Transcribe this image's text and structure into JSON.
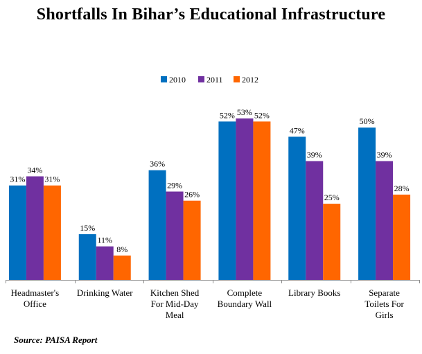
{
  "chart_data": {
    "type": "bar",
    "title": "Shortfalls In Bihar’s Educational Infrastructure",
    "categories": [
      [
        "Headmaster's",
        "Office"
      ],
      [
        "Drinking Water"
      ],
      [
        "Kitchen Shed",
        "For Mid-Day",
        "Meal"
      ],
      [
        "Complete",
        "Boundary Wall"
      ],
      [
        "Library Books"
      ],
      [
        "Separate",
        "Toilets For",
        "Girls"
      ]
    ],
    "series": [
      {
        "name": "2010",
        "color": "#0070c0",
        "values": [
          31,
          15,
          36,
          52,
          47,
          50
        ]
      },
      {
        "name": "2011",
        "color": "#7030a0",
        "values": [
          34,
          11,
          29,
          53,
          39,
          39
        ]
      },
      {
        "name": "2012",
        "color": "#ff6600",
        "values": [
          31,
          8,
          26,
          52,
          25,
          28
        ]
      }
    ],
    "value_suffix": "%",
    "legend_position": "top-center",
    "grid": false,
    "ylim": [
      0,
      53
    ],
    "source": "Source: PAISA Report"
  }
}
